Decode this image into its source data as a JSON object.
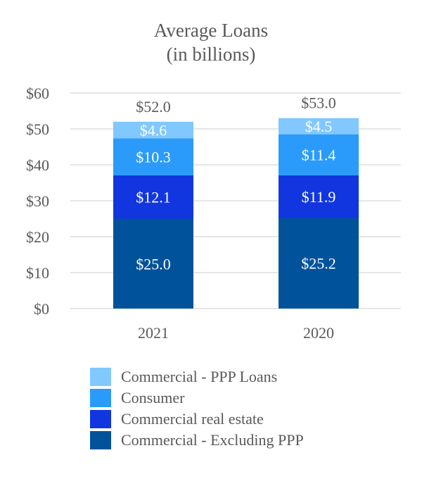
{
  "chart_data": {
    "type": "bar",
    "stacked": true,
    "title": "Average Loans",
    "subtitle": "(in billions)",
    "categories": [
      "2021",
      "2020"
    ],
    "totals": [
      52.0,
      53.0
    ],
    "total_labels": [
      "$52.0",
      "$53.0"
    ],
    "series": [
      {
        "name": "Commercial - Excluding PPP",
        "color": "#00529a",
        "values": [
          25.0,
          25.2
        ],
        "labels": [
          "$25.0",
          "$25.2"
        ]
      },
      {
        "name": "Commercial real estate",
        "color": "#1136e0",
        "values": [
          12.1,
          11.9
        ],
        "labels": [
          "$12.1",
          "$11.9"
        ]
      },
      {
        "name": "Consumer",
        "color": "#2a9bfb",
        "values": [
          10.3,
          11.4
        ],
        "labels": [
          "$10.3",
          "$11.4"
        ]
      },
      {
        "name": "Commercial - PPP Loans",
        "color": "#80c8ff",
        "values": [
          4.6,
          4.5
        ],
        "labels": [
          "$4.6",
          "$4.5"
        ]
      }
    ],
    "ylim": [
      0,
      60
    ],
    "yticks": [
      0,
      10,
      20,
      30,
      40,
      50,
      60
    ],
    "ytick_labels": [
      "$0",
      "$10",
      "$20",
      "$30",
      "$40",
      "$50",
      "$60"
    ],
    "grid": true,
    "legend_position": "bottom"
  }
}
